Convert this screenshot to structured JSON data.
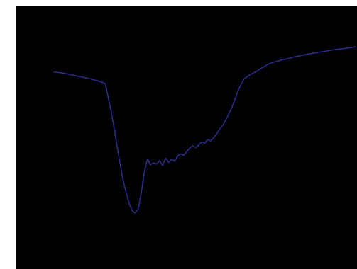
{
  "chart_data": {
    "type": "line",
    "title": "",
    "xlabel": "",
    "ylabel": "",
    "xlim": [
      0,
      100
    ],
    "ylim": [
      0,
      100
    ],
    "grid": false,
    "legend": "none",
    "background_color": "#000000",
    "series": [
      {
        "color": "#2b2b8c",
        "x": [
          0,
          3,
          6,
          9,
          12,
          15,
          17,
          18,
          19,
          20,
          21,
          22,
          23,
          24,
          25,
          26,
          27,
          28,
          29,
          30,
          31,
          32,
          33,
          34,
          35,
          36,
          37,
          38,
          39,
          40,
          41,
          42,
          43,
          44,
          45,
          46,
          47,
          48,
          49,
          50,
          51,
          52,
          53,
          54,
          55,
          56,
          57,
          58,
          59,
          60,
          61,
          62,
          63,
          64,
          65,
          66,
          67,
          68,
          69,
          70,
          71,
          72,
          73,
          74,
          75,
          76,
          77,
          78,
          79,
          80,
          82,
          84,
          86,
          88,
          90,
          92,
          94,
          96,
          98,
          100
        ],
        "y": [
          79.1,
          78.6,
          77.7,
          76.9,
          76.0,
          74.9,
          73.8,
          67.6,
          61.1,
          53.5,
          45.1,
          37.3,
          30.0,
          24.6,
          19.7,
          16.5,
          15.7,
          17.8,
          25.1,
          34.2,
          40.0,
          37.3,
          38.2,
          37.6,
          39.2,
          37.1,
          40.3,
          38.4,
          39.8,
          38.9,
          41.3,
          42.2,
          41.6,
          43.2,
          44.9,
          45.8,
          45.1,
          46.2,
          47.6,
          47.0,
          48.7,
          48.1,
          49.6,
          51.4,
          53.5,
          55.1,
          57.6,
          60.3,
          63.2,
          66.8,
          70.5,
          73.5,
          75.9,
          77.0,
          77.8,
          78.6,
          79.2,
          80.1,
          81.0,
          81.7,
          82.6,
          83.1,
          83.6,
          83.9,
          84.3,
          84.7,
          84.9,
          85.3,
          85.6,
          86.0,
          86.5,
          87.1,
          87.5,
          88.0,
          88.4,
          88.9,
          89.3,
          89.6,
          90.0,
          90.4
        ]
      }
    ]
  }
}
